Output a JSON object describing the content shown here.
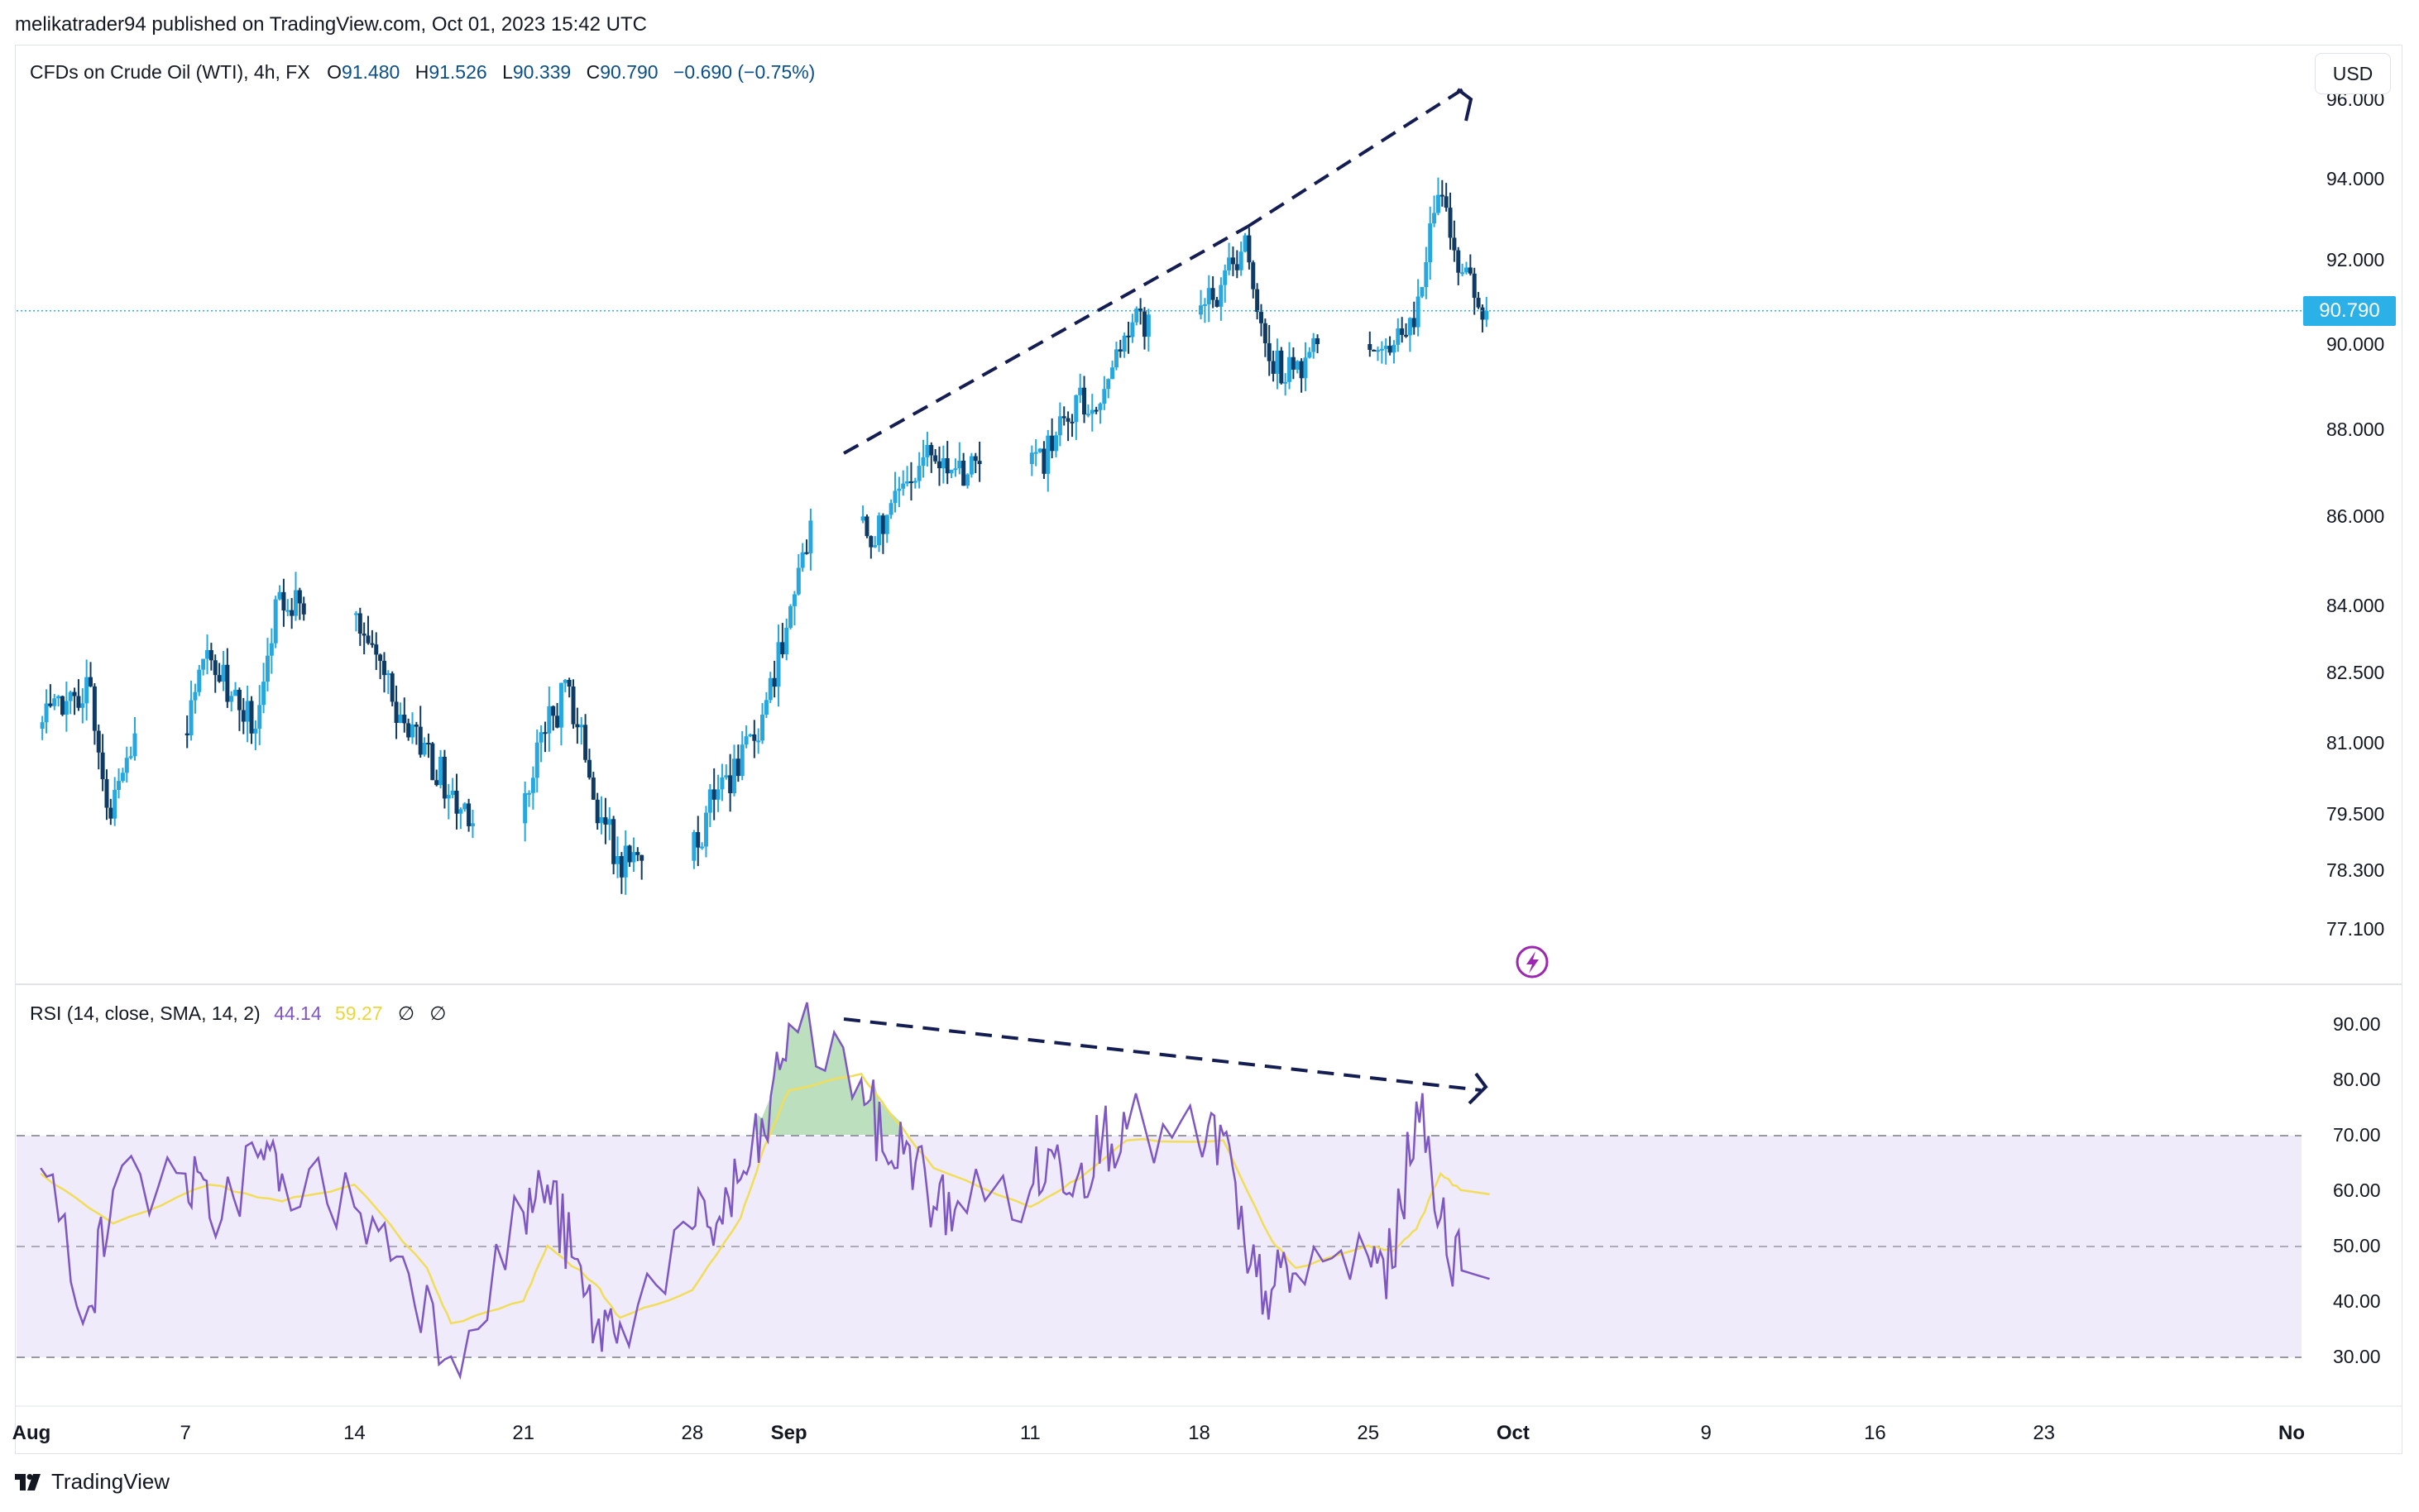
{
  "publisher_line": "melikatrader94 published on TradingView.com, Oct 01, 2023 15:42 UTC",
  "legend": {
    "symbol": "CFDs on Crude Oil (WTI), 4h, FX",
    "o_label": "O",
    "o_value": "91.480",
    "h_label": "H",
    "h_value": "91.526",
    "l_label": "L",
    "l_value": "90.339",
    "c_label": "C",
    "c_value": "90.790",
    "change": "−0.690 (−0.75%)"
  },
  "currency_button": "USD",
  "last_price_label": "90.790",
  "rsi_legend": {
    "name": "RSI (14, close, SMA, 14, 2)",
    "rsi_value": "44.14",
    "sma_value": "59.27",
    "placeholder1": "∅",
    "placeholder2": "∅"
  },
  "brand": "TradingView",
  "colors": {
    "bull": "#26a7df",
    "bear": "#0f3a63",
    "rsi_line": "#7e57c2",
    "sma_line": "#f2dd58",
    "band_fill": "#efebfb",
    "last_price": "#2bb1e8",
    "trendline": "#131d52"
  },
  "chart_data": [
    {
      "type": "candlestick",
      "price_axis_labels": [
        "96.000",
        "94.000",
        "92.000",
        "90.000",
        "88.000",
        "86.000",
        "84.000",
        "82.500",
        "81.000",
        "79.500",
        "78.300",
        "77.100"
      ],
      "time_axis_labels": [
        "Aug",
        "7",
        "14",
        "21",
        "28",
        "Sep",
        "11",
        "18",
        "25",
        "Oct",
        "9",
        "16",
        "23",
        "No"
      ],
      "last_price": 90.79,
      "anchors": [
        {
          "date": "2023-08-01",
          "close": 81.6
        },
        {
          "date": "2023-08-02",
          "close": 82.4
        },
        {
          "date": "2023-08-03",
          "close": 79.4
        },
        {
          "date": "2023-08-04",
          "close": 81.2
        },
        {
          "date": "2023-08-07",
          "close": 83.0
        },
        {
          "date": "2023-08-08",
          "close": 82.0
        },
        {
          "date": "2023-08-09",
          "close": 81.3
        },
        {
          "date": "2023-08-10",
          "close": 84.3
        },
        {
          "date": "2023-08-11",
          "close": 83.8
        },
        {
          "date": "2023-08-14",
          "close": 82.9
        },
        {
          "date": "2023-08-15",
          "close": 81.6
        },
        {
          "date": "2023-08-16",
          "close": 81.0
        },
        {
          "date": "2023-08-17",
          "close": 79.9
        },
        {
          "date": "2023-08-18",
          "close": 79.3
        },
        {
          "date": "2023-08-21",
          "close": 81.2
        },
        {
          "date": "2023-08-22",
          "close": 82.2
        },
        {
          "date": "2023-08-23",
          "close": 79.8
        },
        {
          "date": "2023-08-24",
          "close": 78.6
        },
        {
          "date": "2023-08-25",
          "close": 78.5
        },
        {
          "date": "2023-08-28",
          "close": 79.8
        },
        {
          "date": "2023-08-29",
          "close": 80.3
        },
        {
          "date": "2023-08-30",
          "close": 81.6
        },
        {
          "date": "2023-08-31",
          "close": 83.5
        },
        {
          "date": "2023-09-01",
          "close": 85.9
        },
        {
          "date": "2023-09-04",
          "close": 85.6
        },
        {
          "date": "2023-09-05",
          "close": 86.8
        },
        {
          "date": "2023-09-06",
          "close": 87.4
        },
        {
          "date": "2023-09-07",
          "close": 87.1
        },
        {
          "date": "2023-09-08",
          "close": 87.2
        },
        {
          "date": "2023-09-11",
          "close": 87.5
        },
        {
          "date": "2023-09-12",
          "close": 88.8
        },
        {
          "date": "2023-09-13",
          "close": 88.6
        },
        {
          "date": "2023-09-14",
          "close": 90.2
        },
        {
          "date": "2023-09-15",
          "close": 90.7
        },
        {
          "date": "2023-09-18",
          "close": 91.4
        },
        {
          "date": "2023-09-19",
          "close": 92.6
        },
        {
          "date": "2023-09-20",
          "close": 89.6
        },
        {
          "date": "2023-09-21",
          "close": 89.4
        },
        {
          "date": "2023-09-22",
          "close": 90.0
        },
        {
          "date": "2023-09-25",
          "close": 89.8
        },
        {
          "date": "2023-09-26",
          "close": 90.4
        },
        {
          "date": "2023-09-27",
          "close": 93.6
        },
        {
          "date": "2023-09-28",
          "close": 91.7
        },
        {
          "date": "2023-09-29",
          "close": 90.79
        }
      ]
    },
    {
      "type": "line",
      "indicator": "RSI",
      "y_axis_labels": [
        "90.00",
        "80.00",
        "70.00",
        "60.00",
        "50.00",
        "40.00",
        "30.00"
      ],
      "bands": {
        "upper": 70,
        "middle": 50,
        "lower": 30
      },
      "anchors": [
        {
          "date": "2023-08-01",
          "rsi": 64
        },
        {
          "date": "2023-08-03",
          "rsi": 39
        },
        {
          "date": "2023-08-04",
          "rsi": 60
        },
        {
          "date": "2023-08-07",
          "rsi": 63
        },
        {
          "date": "2023-08-08",
          "rsi": 55
        },
        {
          "date": "2023-08-10",
          "rsi": 66
        },
        {
          "date": "2023-08-11",
          "rsi": 63
        },
        {
          "date": "2023-08-14",
          "rsi": 57
        },
        {
          "date": "2023-08-16",
          "rsi": 48
        },
        {
          "date": "2023-08-18",
          "rsi": 30
        },
        {
          "date": "2023-08-21",
          "rsi": 56
        },
        {
          "date": "2023-08-22",
          "rsi": 61
        },
        {
          "date": "2023-08-23",
          "rsi": 48
        },
        {
          "date": "2023-08-24",
          "rsi": 35
        },
        {
          "date": "2023-08-25",
          "rsi": 36
        },
        {
          "date": "2023-08-28",
          "rsi": 53
        },
        {
          "date": "2023-08-29",
          "rsi": 54
        },
        {
          "date": "2023-08-30",
          "rsi": 62
        },
        {
          "date": "2023-08-31",
          "rsi": 70
        },
        {
          "date": "2023-09-01",
          "rsi": 90
        },
        {
          "date": "2023-09-04",
          "rsi": 80
        },
        {
          "date": "2023-09-05",
          "rsi": 66
        },
        {
          "date": "2023-09-06",
          "rsi": 68
        },
        {
          "date": "2023-09-07",
          "rsi": 57
        },
        {
          "date": "2023-09-08",
          "rsi": 58
        },
        {
          "date": "2023-09-11",
          "rsi": 60
        },
        {
          "date": "2023-09-12",
          "rsi": 66
        },
        {
          "date": "2023-09-13",
          "rsi": 63
        },
        {
          "date": "2023-09-14",
          "rsi": 70
        },
        {
          "date": "2023-09-15",
          "rsi": 71
        },
        {
          "date": "2023-09-18",
          "rsi": 68
        },
        {
          "date": "2023-09-19",
          "rsi": 70
        },
        {
          "date": "2023-09-20",
          "rsi": 45
        },
        {
          "date": "2023-09-21",
          "rsi": 42
        },
        {
          "date": "2023-09-22",
          "rsi": 45
        },
        {
          "date": "2023-09-25",
          "rsi": 48
        },
        {
          "date": "2023-09-26",
          "rsi": 46
        },
        {
          "date": "2023-09-27",
          "rsi": 76
        },
        {
          "date": "2023-09-28",
          "rsi": 55
        },
        {
          "date": "2023-09-29",
          "rsi": 44
        }
      ],
      "sma_anchors": [
        {
          "date": "2023-08-01",
          "sma": 63
        },
        {
          "date": "2023-08-04",
          "sma": 54
        },
        {
          "date": "2023-08-08",
          "sma": 61
        },
        {
          "date": "2023-08-11",
          "sma": 58
        },
        {
          "date": "2023-08-14",
          "sma": 61
        },
        {
          "date": "2023-08-17",
          "sma": 46
        },
        {
          "date": "2023-08-18",
          "sma": 36
        },
        {
          "date": "2023-08-21",
          "sma": 40
        },
        {
          "date": "2023-08-22",
          "sma": 50
        },
        {
          "date": "2023-08-24",
          "sma": 43
        },
        {
          "date": "2023-08-25",
          "sma": 37
        },
        {
          "date": "2023-08-28",
          "sma": 42
        },
        {
          "date": "2023-08-30",
          "sma": 55
        },
        {
          "date": "2023-08-31",
          "sma": 68
        },
        {
          "date": "2023-09-01",
          "sma": 78
        },
        {
          "date": "2023-09-04",
          "sma": 81
        },
        {
          "date": "2023-09-05",
          "sma": 75
        },
        {
          "date": "2023-09-07",
          "sma": 64
        },
        {
          "date": "2023-09-11",
          "sma": 57
        },
        {
          "date": "2023-09-13",
          "sma": 62
        },
        {
          "date": "2023-09-15",
          "sma": 69
        },
        {
          "date": "2023-09-19",
          "sma": 69
        },
        {
          "date": "2023-09-21",
          "sma": 51
        },
        {
          "date": "2023-09-22",
          "sma": 46
        },
        {
          "date": "2023-09-25",
          "sma": 50
        },
        {
          "date": "2023-09-26",
          "sma": 49
        },
        {
          "date": "2023-09-27",
          "sma": 53
        },
        {
          "date": "2023-09-28",
          "sma": 63
        },
        {
          "date": "2023-09-29",
          "sma": 59.27
        }
      ]
    }
  ]
}
